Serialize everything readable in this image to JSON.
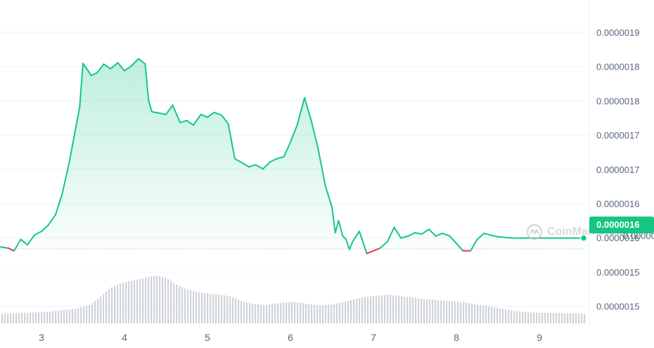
{
  "watermark": "CoinMarketCap",
  "current_price_label": "0.0000016",
  "reference_label_behind": "0.0000016",
  "colors": {
    "up": "#16c784",
    "down": "#ea3943",
    "volume": "#cfd3da",
    "grid": "#eff2f5"
  },
  "chart_data": {
    "type": "line",
    "title": "",
    "xlabel": "",
    "ylabel": "",
    "x_ticks": [
      "3",
      "4",
      "5",
      "6",
      "7",
      "8",
      "9"
    ],
    "y_ticks": [
      "0.0000015",
      "0.0000015",
      "0.0000016",
      "0.0000016",
      "0.0000017",
      "0.0000017",
      "0.0000018",
      "0.0000018",
      "0.0000019"
    ],
    "ylim": [
      1.45e-06,
      1.9e-06
    ],
    "xlim": [
      2.5,
      9.55
    ],
    "reference_value": 1.561e-06,
    "current_value": 1.577e-06,
    "grid": true,
    "series": [
      {
        "x": [
          2.5,
          2.6,
          2.67,
          2.75,
          2.83,
          2.92,
          3.0,
          3.08,
          3.17,
          3.25,
          3.33,
          3.42,
          3.46,
          3.5,
          3.54,
          3.6,
          3.67,
          3.75,
          3.83,
          3.92,
          4.0,
          4.08,
          4.17,
          4.25,
          4.29,
          4.33,
          4.42,
          4.5,
          4.58,
          4.67,
          4.75,
          4.83,
          4.92,
          5.0,
          5.08,
          5.17,
          5.25,
          5.33,
          5.42,
          5.5,
          5.58,
          5.67,
          5.75,
          5.83,
          5.92,
          6.0,
          6.08,
          6.17,
          6.25,
          6.33,
          6.42,
          6.5,
          6.54,
          6.58,
          6.63,
          6.67,
          6.71,
          6.75,
          6.83,
          6.92,
          7.0,
          7.08,
          7.17,
          7.25,
          7.33,
          7.42,
          7.5,
          7.58,
          7.67,
          7.75,
          7.83,
          7.92,
          8.0,
          8.08,
          8.17,
          8.25,
          8.33,
          8.42,
          8.5,
          8.58,
          8.67,
          8.75,
          8.83,
          8.92,
          9.0,
          9.08,
          9.17,
          9.25,
          9.33,
          9.42,
          9.5,
          9.55
        ],
        "y": [
          1.564e-06,
          1.562e-06,
          1.558e-06,
          1.575e-06,
          1.567e-06,
          1.582e-06,
          1.587e-06,
          1.596e-06,
          1.612e-06,
          1.643e-06,
          1.687e-06,
          1.746e-06,
          1.772e-06,
          1.837e-06,
          1.83e-06,
          1.819e-06,
          1.823e-06,
          1.836e-06,
          1.829e-06,
          1.838e-06,
          1.826e-06,
          1.833e-06,
          1.844e-06,
          1.836e-06,
          1.782e-06,
          1.765e-06,
          1.763e-06,
          1.761e-06,
          1.775e-06,
          1.749e-06,
          1.752e-06,
          1.745e-06,
          1.761e-06,
          1.757e-06,
          1.764e-06,
          1.76e-06,
          1.747e-06,
          1.695e-06,
          1.689e-06,
          1.683e-06,
          1.686e-06,
          1.68e-06,
          1.69e-06,
          1.695e-06,
          1.698e-06,
          1.72e-06,
          1.745e-06,
          1.786e-06,
          1.752e-06,
          1.712e-06,
          1.655e-06,
          1.623e-06,
          1.585e-06,
          1.603e-06,
          1.58e-06,
          1.575e-06,
          1.56e-06,
          1.572e-06,
          1.587e-06,
          1.554e-06,
          1.558e-06,
          1.562e-06,
          1.572e-06,
          1.593e-06,
          1.577e-06,
          1.58e-06,
          1.585e-06,
          1.583e-06,
          1.59e-06,
          1.58e-06,
          1.584e-06,
          1.58e-06,
          1.569e-06,
          1.558e-06,
          1.558e-06,
          1.575e-06,
          1.584e-06,
          1.581e-06,
          1.579e-06,
          1.578e-06,
          1.577e-06,
          1.577e-06,
          1.577e-06,
          1.577e-06,
          1.577e-06,
          1.577e-06,
          1.577e-06,
          1.577e-06,
          1.577e-06,
          1.577e-06,
          1.577e-06,
          1.577e-06
        ]
      }
    ],
    "volume_profile": [
      0.2,
      0.21,
      0.22,
      0.23,
      0.24,
      0.26,
      0.28,
      0.32,
      0.38,
      0.55,
      0.75,
      0.85,
      0.9,
      0.95,
      1.0,
      0.95,
      0.8,
      0.7,
      0.65,
      0.62,
      0.6,
      0.55,
      0.45,
      0.4,
      0.38,
      0.42,
      0.45,
      0.44,
      0.4,
      0.38,
      0.4,
      0.44,
      0.5,
      0.55,
      0.58,
      0.6,
      0.58,
      0.55,
      0.52,
      0.5,
      0.48,
      0.46,
      0.44,
      0.4,
      0.36,
      0.32,
      0.28,
      0.25,
      0.23,
      0.22,
      0.22,
      0.21,
      0.21,
      0.2
    ]
  }
}
